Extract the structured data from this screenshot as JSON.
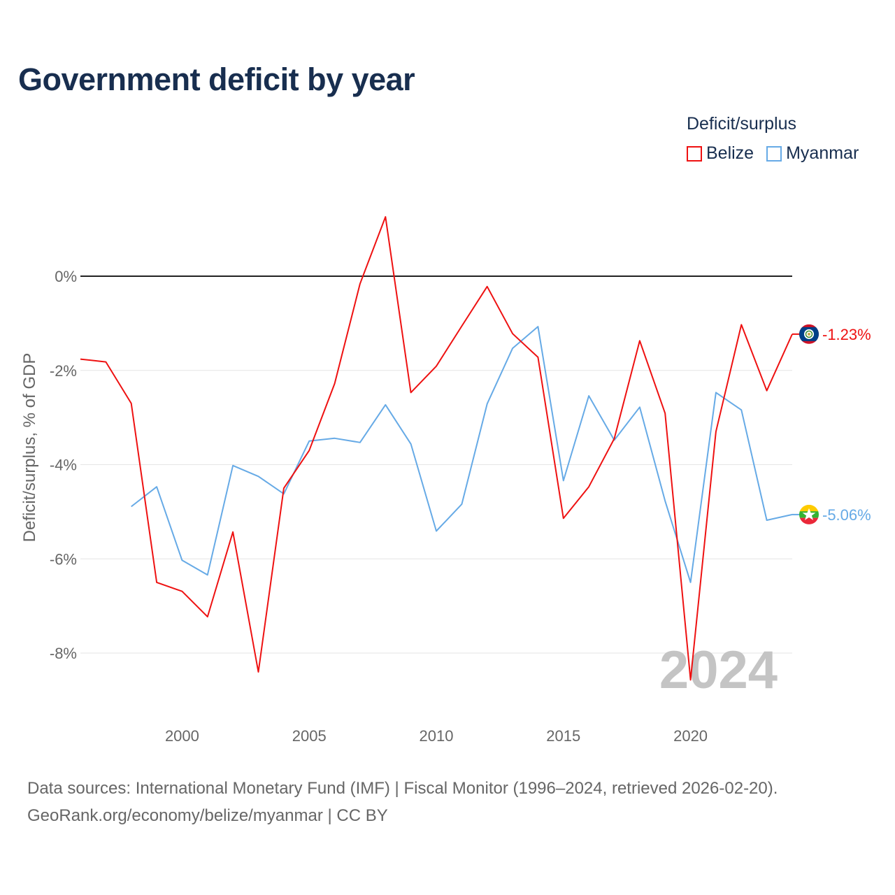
{
  "title": "Government deficit by year",
  "legend": {
    "title": "Deficit/surplus",
    "items": [
      {
        "name": "Belize",
        "color": "#ee1111"
      },
      {
        "name": "Myanmar",
        "color": "#66aae6"
      }
    ]
  },
  "source": {
    "line1": "Data sources: International Monetary Fund (IMF) | Fiscal Monitor (1996–2024, retrieved 2026-02-20).",
    "line2": "GeoRank.org/economy/belize/myanmar | CC BY"
  },
  "chart_data": {
    "type": "line",
    "title": "Government deficit by year",
    "xlabel": "",
    "ylabel": "Deficit/surplus, % of GDP",
    "xlim": [
      1996,
      2024
    ],
    "ylim": [
      -9.2,
      1.5
    ],
    "x_ticks": [
      2000,
      2005,
      2010,
      2015,
      2020
    ],
    "y_ticks": [
      0,
      -2,
      -4,
      -6,
      -8
    ],
    "y_tick_labels": [
      "0%",
      "-2%",
      "-4%",
      "-6%",
      "-8%"
    ],
    "watermark_year": "2024",
    "series": [
      {
        "name": "Belize",
        "color": "#ee1111",
        "end_label": "-1.23%",
        "x": [
          1996,
          1997,
          1998,
          1999,
          2000,
          2001,
          2002,
          2003,
          2004,
          2005,
          2006,
          2007,
          2008,
          2009,
          2010,
          2011,
          2012,
          2013,
          2014,
          2015,
          2016,
          2017,
          2018,
          2019,
          2020,
          2021,
          2022,
          2023,
          2024
        ],
        "values": [
          -1.76,
          -1.82,
          -2.7,
          -6.5,
          -6.69,
          -7.23,
          -5.43,
          -8.4,
          -4.5,
          -3.7,
          -2.28,
          -0.16,
          1.26,
          -2.47,
          -1.91,
          -1.06,
          -0.22,
          -1.22,
          -1.72,
          -5.14,
          -4.47,
          -3.45,
          -1.37,
          -2.91,
          -8.57,
          -3.3,
          -1.03,
          -2.43,
          -1.23
        ]
      },
      {
        "name": "Myanmar",
        "color": "#66aae6",
        "end_label": "-5.06%",
        "x": [
          1998,
          1999,
          2000,
          2001,
          2002,
          2003,
          2004,
          2005,
          2006,
          2007,
          2008,
          2009,
          2010,
          2011,
          2012,
          2013,
          2014,
          2015,
          2016,
          2017,
          2018,
          2019,
          2020,
          2021,
          2022,
          2023,
          2024
        ],
        "values": [
          -4.89,
          -4.47,
          -6.03,
          -6.34,
          -4.02,
          -4.25,
          -4.62,
          -3.5,
          -3.44,
          -3.53,
          -2.73,
          -3.56,
          -5.41,
          -4.84,
          -2.71,
          -1.53,
          -1.07,
          -4.34,
          -2.54,
          -3.48,
          -2.78,
          -4.77,
          -6.5,
          -2.47,
          -2.84,
          -5.18,
          -5.06
        ]
      }
    ]
  }
}
